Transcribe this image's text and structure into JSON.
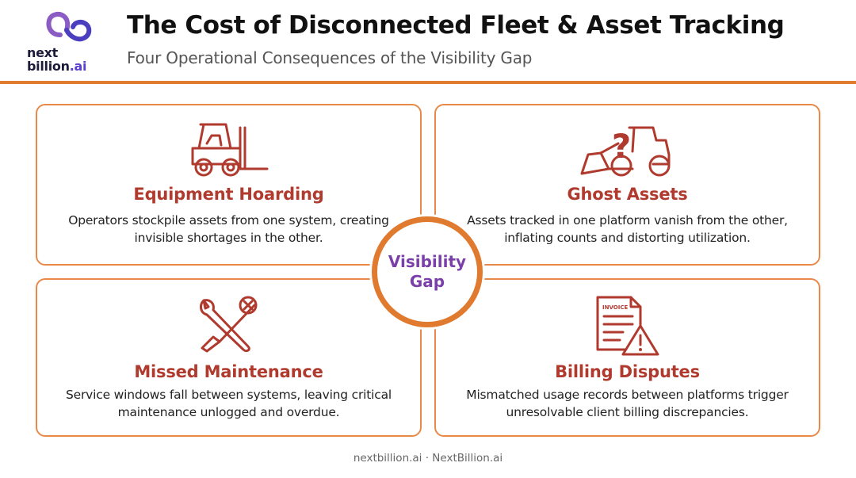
{
  "logo": {
    "line1": "next",
    "line2": "billion",
    "line2_suffix": ".ai"
  },
  "header": {
    "title": "The Cost of Disconnected Fleet & Asset Tracking",
    "subtitle": "Four Operational Consequences of the Visibility Gap"
  },
  "colors": {
    "accent_orange": "#e07a2e",
    "card_border": "#e8894a",
    "heading_red": "#b03a2e",
    "center_purple": "#7a3fa8"
  },
  "center": {
    "label": "Visibility Gap"
  },
  "cards": [
    {
      "icon": "forklift-icon",
      "title": "Equipment Hoarding",
      "text": "Operators stockpile assets from one system, creating invisible shortages in the other."
    },
    {
      "icon": "loader-question-icon",
      "icon_text": "?",
      "title": "Ghost Assets",
      "text": "Assets tracked in one platform vanish from the other, inflating counts and distorting utilization."
    },
    {
      "icon": "wrench-screwdriver-icon",
      "title": "Missed Maintenance",
      "text": "Service windows fall between systems, leaving critical maintenance unlogged and overdue."
    },
    {
      "icon": "invoice-warning-icon",
      "icon_text": "INVOICE",
      "title": "Billing Disputes",
      "text": "Mismatched usage records between platforms trigger unresolvable client billing discrepancies."
    }
  ],
  "footer": {
    "text": "nextbillion.ai · NextBillion.ai"
  }
}
